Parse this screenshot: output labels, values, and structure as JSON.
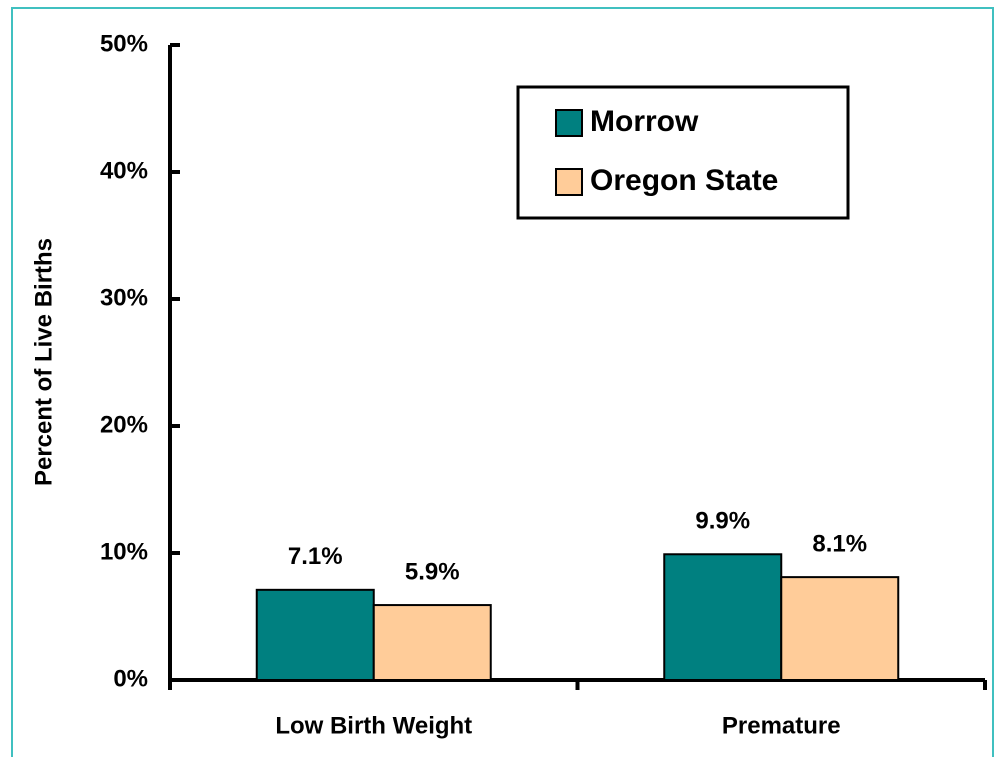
{
  "chart_data": {
    "type": "bar",
    "y_label": "Percent of Live Births",
    "categories": [
      "Low Birth Weight",
      "Premature"
    ],
    "series": [
      {
        "name": "Morrow",
        "color": "#008080",
        "values": [
          7.1,
          9.9
        ],
        "value_labels": [
          "7.1%",
          "9.9%"
        ]
      },
      {
        "name": "Oregon State",
        "color": "#ffcc99",
        "values": [
          5.9,
          8.1
        ],
        "value_labels": [
          "5.9%",
          "8.1%"
        ]
      }
    ],
    "ylim": [
      0,
      50
    ],
    "yticks": [
      {
        "value": 0,
        "label": "0%"
      },
      {
        "value": 10,
        "label": "10%"
      },
      {
        "value": 20,
        "label": "20%"
      },
      {
        "value": 30,
        "label": "30%"
      },
      {
        "value": 40,
        "label": "40%"
      },
      {
        "value": 50,
        "label": "50%"
      }
    ],
    "legend": "upper right"
  }
}
